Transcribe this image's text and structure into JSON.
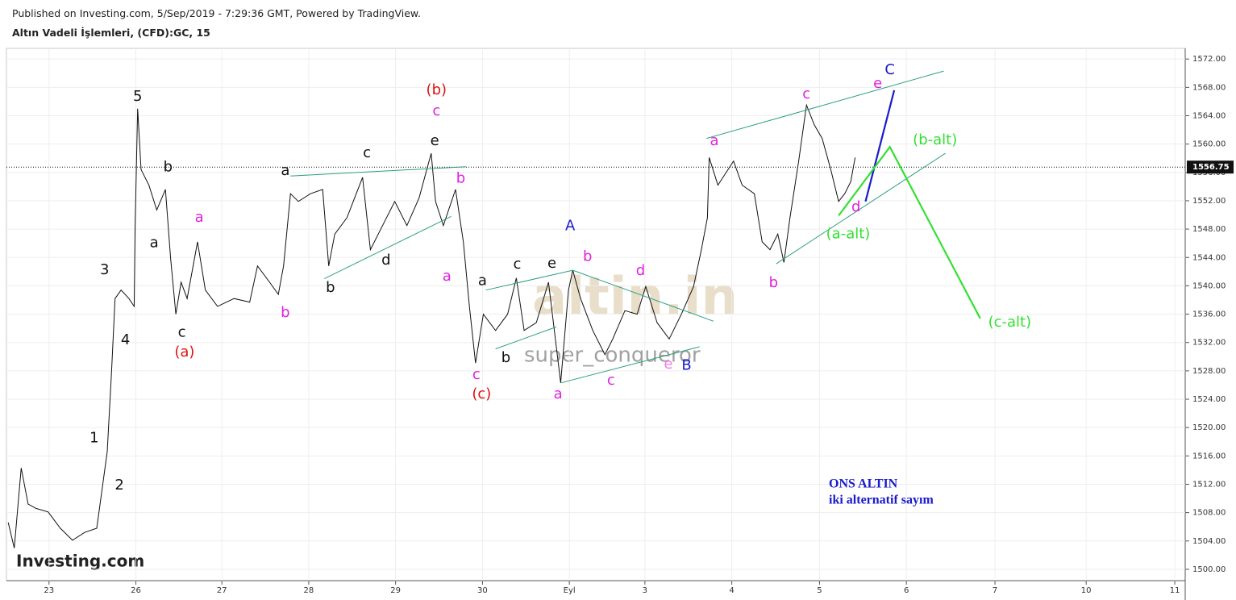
{
  "chart_data": {
    "type": "line",
    "publisher": "Published on Investing.com, 5/Sep/2019 - 7:29:36 GMT, Powered by TradingView.",
    "title": "Altın Vadeli İşlemleri, (CFD):GC, 15",
    "watermarks": [
      "altin.in",
      "super_conqueror",
      "Investing.com"
    ],
    "notes": [
      "ONS ALTIN",
      "iki alternatif sayım"
    ],
    "color": "#111111",
    "grid": true,
    "xlim": [
      -0.49,
      13.08
    ],
    "ylim": [
      1498.4,
      1573.5
    ],
    "xticks": [
      {
        "value": 0,
        "label": "23"
      },
      {
        "value": 1,
        "label": "26"
      },
      {
        "value": 1.99,
        "label": "27"
      },
      {
        "value": 2.99,
        "label": "28"
      },
      {
        "value": 3.99,
        "label": "29"
      },
      {
        "value": 4.99,
        "label": "30"
      },
      {
        "value": 5.99,
        "label": "Eyl"
      },
      {
        "value": 6.86,
        "label": "3"
      },
      {
        "value": 7.86,
        "label": "4"
      },
      {
        "value": 8.87,
        "label": "5"
      },
      {
        "value": 9.87,
        "label": "6"
      },
      {
        "value": 10.89,
        "label": "7"
      },
      {
        "value": 11.94,
        "label": "10"
      },
      {
        "value": 12.96,
        "label": "11"
      }
    ],
    "yticks": [
      {
        "value": 1500,
        "label": "1500.00"
      },
      {
        "value": 1504,
        "label": "1504.00"
      },
      {
        "value": 1508,
        "label": "1508.00"
      },
      {
        "value": 1512,
        "label": "1512.00"
      },
      {
        "value": 1516,
        "label": "1516.00"
      },
      {
        "value": 1520,
        "label": "1520.00"
      },
      {
        "value": 1524,
        "label": "1524.00"
      },
      {
        "value": 1528,
        "label": "1528.00"
      },
      {
        "value": 1532,
        "label": "1532.00"
      },
      {
        "value": 1536,
        "label": "1536.00"
      },
      {
        "value": 1540,
        "label": "1540.00"
      },
      {
        "value": 1544,
        "label": "1544.00"
      },
      {
        "value": 1548,
        "label": "1548.00"
      },
      {
        "value": 1552,
        "label": "1552.00"
      },
      {
        "value": 1556,
        "label": "1556.00"
      },
      {
        "value": 1560,
        "label": "1560.00"
      },
      {
        "value": 1564,
        "label": "1564.00"
      },
      {
        "value": 1568,
        "label": "1568.00"
      },
      {
        "value": 1572,
        "label": "1572.00"
      }
    ],
    "last_price": {
      "value": 1556.75,
      "label": "1556.75"
    },
    "x": [
      -0.47,
      -0.4,
      -0.32,
      -0.24,
      -0.15,
      -0.01,
      0.13,
      0.27,
      0.41,
      0.55,
      0.62,
      0.67,
      0.72,
      0.76,
      0.83,
      0.92,
      0.98,
      0.99,
      1.02,
      1.06,
      1.15,
      1.24,
      1.34,
      1.4,
      1.46,
      1.52,
      1.59,
      1.71,
      1.8,
      1.94,
      2.13,
      2.31,
      2.4,
      2.54,
      2.64,
      2.7,
      2.78,
      2.87,
      3.01,
      3.15,
      3.22,
      3.29,
      3.43,
      3.61,
      3.7,
      3.84,
      3.98,
      4.12,
      4.26,
      4.4,
      4.45,
      4.54,
      4.68,
      4.77,
      4.84,
      4.91,
      5.0,
      5.14,
      5.28,
      5.38,
      5.47,
      5.61,
      5.75,
      5.84,
      5.89,
      5.98,
      6.03,
      6.12,
      6.26,
      6.4,
      6.49,
      6.63,
      6.77,
      6.87,
      7.0,
      7.14,
      7.28,
      7.42,
      7.51,
      7.58,
      7.6,
      7.7,
      7.88,
      7.98,
      8.12,
      8.21,
      8.3,
      8.39,
      8.46,
      8.53,
      8.63,
      8.72,
      8.81,
      8.9,
      9.0,
      9.09,
      9.16,
      9.23,
      9.28
    ],
    "values": [
      1506.6,
      1503.0,
      1514.3,
      1509.2,
      1508.6,
      1508.1,
      1505.8,
      1504.1,
      1505.2,
      1505.8,
      1512.1,
      1516.6,
      1528.0,
      1538.2,
      1539.4,
      1538.2,
      1537.1,
      1547.9,
      1565.0,
      1556.4,
      1554.2,
      1550.7,
      1553.6,
      1543.9,
      1536.0,
      1540.5,
      1538.2,
      1546.2,
      1539.4,
      1537.1,
      1538.2,
      1537.7,
      1542.8,
      1540.5,
      1538.8,
      1542.8,
      1553.0,
      1551.9,
      1553.0,
      1553.6,
      1542.8,
      1547.3,
      1549.6,
      1555.3,
      1545.1,
      1548.5,
      1551.9,
      1548.5,
      1552.4,
      1558.7,
      1551.9,
      1548.5,
      1553.6,
      1546.2,
      1537.1,
      1529.1,
      1536.0,
      1533.7,
      1536.0,
      1541.1,
      1533.7,
      1534.8,
      1540.5,
      1531.4,
      1526.3,
      1539.4,
      1542.2,
      1538.2,
      1533.7,
      1530.3,
      1532.5,
      1536.5,
      1536.0,
      1539.9,
      1534.8,
      1532.5,
      1536.0,
      1539.9,
      1545.1,
      1549.6,
      1558.1,
      1554.2,
      1557.6,
      1554.2,
      1553.0,
      1546.2,
      1545.1,
      1547.3,
      1543.3,
      1549.6,
      1557.6,
      1565.5,
      1562.7,
      1560.8,
      1556.4,
      1551.9,
      1553.0,
      1554.7,
      1558.1
    ],
    "lines": [
      {
        "color": "#2e9e83",
        "x": [
          2.78,
          4.8
        ],
        "y": [
          1555.5,
          1556.8
        ]
      },
      {
        "color": "#2e9e83",
        "x": [
          3.17,
          4.63
        ],
        "y": [
          1541.0,
          1549.8
        ]
      },
      {
        "color": "#2e9e83",
        "x": [
          5.03,
          6.03
        ],
        "y": [
          1539.4,
          1542.2
        ]
      },
      {
        "color": "#2e9e83",
        "x": [
          6.03,
          7.65
        ],
        "y": [
          1542.2,
          1535.0
        ]
      },
      {
        "color": "#2e9e83",
        "x": [
          5.14,
          5.84
        ],
        "y": [
          1531.1,
          1534.2
        ]
      },
      {
        "color": "#2e9e83",
        "x": [
          5.89,
          7.49
        ],
        "y": [
          1526.3,
          1531.4
        ]
      },
      {
        "color": "#2e9e83",
        "x": [
          7.57,
          10.3
        ],
        "y": [
          1560.8,
          1570.3
        ]
      },
      {
        "color": "#2e9e83",
        "x": [
          8.37,
          10.32
        ],
        "y": [
          1543.1,
          1558.7
        ]
      },
      {
        "color": "#1a1acc",
        "x": [
          9.4,
          9.73
        ],
        "y": [
          1551.9,
          1567.6
        ]
      },
      {
        "color": "#33e033",
        "x": [
          9.09,
          9.68,
          10.72
        ],
        "y": [
          1549.9,
          1559.6,
          1535.4
        ]
      }
    ],
    "annotations": [
      {
        "text": "5",
        "x": 1.02,
        "y": 1566.7,
        "color": "#111111"
      },
      {
        "text": "b",
        "x": 1.37,
        "y": 1556.7,
        "color": "#111111"
      },
      {
        "text": "a",
        "x": 1.21,
        "y": 1546.0,
        "color": "#111111"
      },
      {
        "text": "c",
        "x": 1.53,
        "y": 1533.4,
        "color": "#111111"
      },
      {
        "text": "(a)",
        "x": 1.56,
        "y": 1530.6,
        "color": "#e01010"
      },
      {
        "text": "a",
        "x": 1.73,
        "y": 1549.6,
        "color": "#e020e0"
      },
      {
        "text": "3",
        "x": 0.64,
        "y": 1542.2,
        "color": "#111111"
      },
      {
        "text": "4",
        "x": 0.88,
        "y": 1532.3,
        "color": "#111111"
      },
      {
        "text": "1",
        "x": 0.52,
        "y": 1518.5,
        "color": "#111111"
      },
      {
        "text": "2",
        "x": 0.81,
        "y": 1511.8,
        "color": "#111111"
      },
      {
        "text": "b",
        "x": 2.72,
        "y": 1536.2,
        "color": "#e020e0"
      },
      {
        "text": "a",
        "x": 2.72,
        "y": 1556.2,
        "color": "#111111"
      },
      {
        "text": "b",
        "x": 3.24,
        "y": 1539.7,
        "color": "#111111"
      },
      {
        "text": "c",
        "x": 3.66,
        "y": 1558.7,
        "color": "#111111"
      },
      {
        "text": "d",
        "x": 3.88,
        "y": 1543.6,
        "color": "#111111"
      },
      {
        "text": "e",
        "x": 4.44,
        "y": 1560.4,
        "color": "#111111"
      },
      {
        "text": "(b)",
        "x": 4.46,
        "y": 1567.6,
        "color": "#e01010"
      },
      {
        "text": "c",
        "x": 4.46,
        "y": 1564.6,
        "color": "#e020e0"
      },
      {
        "text": "b",
        "x": 4.74,
        "y": 1555.1,
        "color": "#e020e0"
      },
      {
        "text": "a",
        "x": 4.58,
        "y": 1541.3,
        "color": "#e020e0"
      },
      {
        "text": "c",
        "x": 4.92,
        "y": 1527.4,
        "color": "#e020e0"
      },
      {
        "text": "(c)",
        "x": 4.98,
        "y": 1524.7,
        "color": "#e01010"
      },
      {
        "text": "a",
        "x": 4.99,
        "y": 1540.7,
        "color": "#111111"
      },
      {
        "text": "b",
        "x": 5.26,
        "y": 1529.8,
        "color": "#111111"
      },
      {
        "text": "c",
        "x": 5.39,
        "y": 1543.0,
        "color": "#111111"
      },
      {
        "text": "e",
        "x": 5.79,
        "y": 1543.1,
        "color": "#111111"
      },
      {
        "text": "A",
        "x": 6.0,
        "y": 1548.4,
        "color": "#1a1acc"
      },
      {
        "text": "b",
        "x": 6.2,
        "y": 1544.1,
        "color": "#e020e0"
      },
      {
        "text": "d",
        "x": 6.81,
        "y": 1542.1,
        "color": "#e020e0"
      },
      {
        "text": "a",
        "x": 5.86,
        "y": 1524.7,
        "color": "#e020e0"
      },
      {
        "text": "c",
        "x": 6.47,
        "y": 1526.6,
        "color": "#e020e0"
      },
      {
        "text": "e",
        "x": 7.13,
        "y": 1528.9,
        "color": "#f07aef"
      },
      {
        "text": "B",
        "x": 7.34,
        "y": 1528.7,
        "color": "#1a1acc"
      },
      {
        "text": "a",
        "x": 7.66,
        "y": 1560.4,
        "color": "#e020e0"
      },
      {
        "text": "b",
        "x": 8.34,
        "y": 1540.4,
        "color": "#e020e0"
      },
      {
        "text": "c",
        "x": 8.72,
        "y": 1567.0,
        "color": "#e020e0"
      },
      {
        "text": "e",
        "x": 9.54,
        "y": 1568.5,
        "color": "#e020e0"
      },
      {
        "text": "C",
        "x": 9.68,
        "y": 1570.4,
        "color": "#1a1acc"
      },
      {
        "text": "d",
        "x": 9.29,
        "y": 1551.1,
        "color": "#e020e0"
      },
      {
        "text": "(a-alt)",
        "x": 9.2,
        "y": 1547.3,
        "color": "#33e033"
      },
      {
        "text": "(b-alt)",
        "x": 10.2,
        "y": 1560.5,
        "color": "#33e033"
      },
      {
        "text": "(c-alt)",
        "x": 11.06,
        "y": 1534.8,
        "color": "#33e033"
      }
    ]
  }
}
